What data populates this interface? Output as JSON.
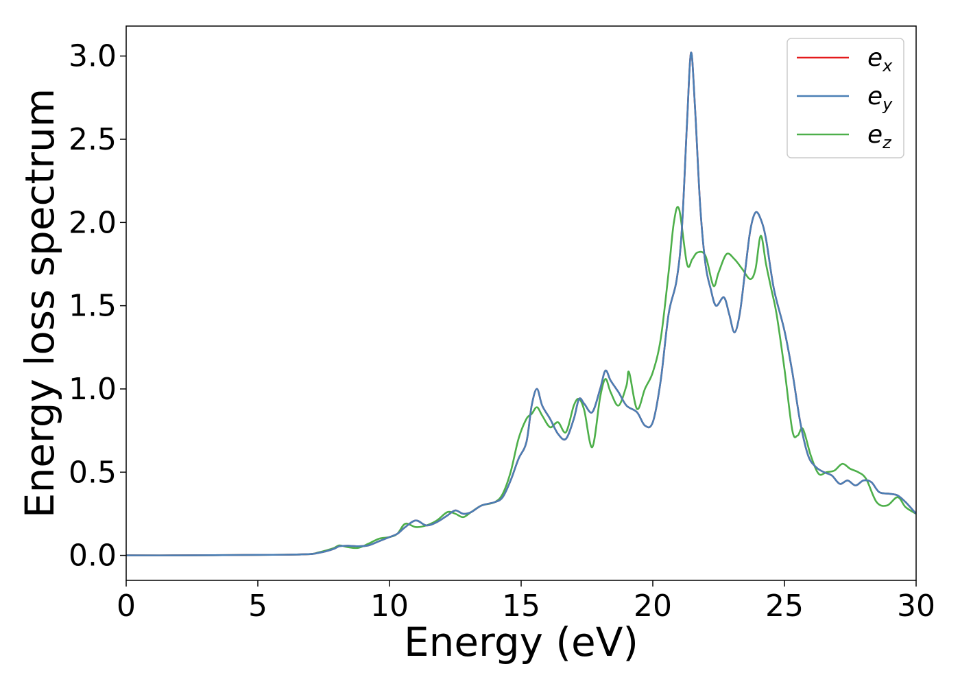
{
  "chart_data": {
    "type": "line",
    "xlabel": "Energy (eV)",
    "ylabel": "Energy loss spectrum",
    "xlim": [
      0,
      30
    ],
    "ylim": [
      -0.15,
      3.18
    ],
    "xticks": [
      0,
      5,
      10,
      15,
      20,
      25,
      30
    ],
    "xtick_labels": [
      "0",
      "5",
      "10",
      "15",
      "20",
      "25",
      "30"
    ],
    "yticks": [
      0.0,
      0.5,
      1.0,
      1.5,
      2.0,
      2.5,
      3.0
    ],
    "ytick_labels": [
      "0.0",
      "0.5",
      "1.0",
      "1.5",
      "2.0",
      "2.5",
      "3.0"
    ],
    "grid": false,
    "legend_position": "top-right",
    "series": [
      {
        "name": "e",
        "sub": "x",
        "color": "#e41a1c",
        "x": [
          0,
          2,
          4,
          6,
          7,
          7.3,
          7.6,
          7.9,
          8.1,
          8.4,
          8.8,
          9.2,
          9.6,
          10,
          10.3,
          10.6,
          11,
          11.4,
          11.8,
          12.2,
          12.5,
          12.8,
          13.1,
          13.5,
          14,
          14.3,
          14.6,
          14.9,
          15.2,
          15.4,
          15.6,
          15.8,
          16.1,
          16.4,
          16.7,
          17,
          17.2,
          17.4,
          17.7,
          18,
          18.2,
          18.4,
          18.7,
          19,
          19.4,
          19.7,
          20,
          20.3,
          20.6,
          20.9,
          21.1,
          21.3,
          21.45,
          21.6,
          21.8,
          22,
          22.2,
          22.4,
          22.7,
          22.9,
          23.1,
          23.3,
          23.5,
          23.7,
          23.9,
          24.1,
          24.3,
          24.6,
          25,
          25.3,
          25.6,
          25.9,
          26.2,
          26.5,
          26.8,
          27.1,
          27.4,
          27.7,
          28,
          28.3,
          28.6,
          29,
          29.3,
          29.6,
          30
        ],
        "y": [
          0,
          0,
          0.002,
          0.004,
          0.008,
          0.015,
          0.025,
          0.04,
          0.055,
          0.058,
          0.055,
          0.06,
          0.085,
          0.11,
          0.13,
          0.17,
          0.21,
          0.18,
          0.2,
          0.24,
          0.27,
          0.25,
          0.26,
          0.3,
          0.32,
          0.35,
          0.45,
          0.58,
          0.68,
          0.9,
          1.0,
          0.9,
          0.82,
          0.73,
          0.7,
          0.82,
          0.94,
          0.91,
          0.86,
          1.0,
          1.11,
          1.05,
          0.98,
          0.9,
          0.86,
          0.78,
          0.8,
          1.05,
          1.45,
          1.65,
          1.95,
          2.6,
          3.02,
          2.7,
          2.1,
          1.75,
          1.6,
          1.5,
          1.55,
          1.45,
          1.34,
          1.45,
          1.7,
          1.95,
          2.06,
          2.02,
          1.9,
          1.6,
          1.35,
          1.1,
          0.8,
          0.6,
          0.53,
          0.5,
          0.48,
          0.43,
          0.45,
          0.42,
          0.45,
          0.44,
          0.38,
          0.37,
          0.36,
          0.32,
          0.25
        ]
      },
      {
        "name": "e",
        "sub": "y",
        "color": "#4a7fb5",
        "x": [
          0,
          2,
          4,
          6,
          7,
          7.3,
          7.6,
          7.9,
          8.1,
          8.4,
          8.8,
          9.2,
          9.6,
          10,
          10.3,
          10.6,
          11,
          11.4,
          11.8,
          12.2,
          12.5,
          12.8,
          13.1,
          13.5,
          14,
          14.3,
          14.6,
          14.9,
          15.2,
          15.4,
          15.6,
          15.8,
          16.1,
          16.4,
          16.7,
          17,
          17.2,
          17.4,
          17.7,
          18,
          18.2,
          18.4,
          18.7,
          19,
          19.4,
          19.7,
          20,
          20.3,
          20.6,
          20.9,
          21.1,
          21.3,
          21.45,
          21.6,
          21.8,
          22,
          22.2,
          22.4,
          22.7,
          22.9,
          23.1,
          23.3,
          23.5,
          23.7,
          23.9,
          24.1,
          24.3,
          24.6,
          25,
          25.3,
          25.6,
          25.9,
          26.2,
          26.5,
          26.8,
          27.1,
          27.4,
          27.7,
          28,
          28.3,
          28.6,
          29,
          29.3,
          29.6,
          30
        ],
        "y": [
          0,
          0,
          0.002,
          0.004,
          0.008,
          0.015,
          0.025,
          0.04,
          0.055,
          0.058,
          0.055,
          0.06,
          0.085,
          0.11,
          0.13,
          0.17,
          0.21,
          0.18,
          0.2,
          0.24,
          0.27,
          0.25,
          0.26,
          0.3,
          0.32,
          0.35,
          0.45,
          0.58,
          0.68,
          0.9,
          1.0,
          0.9,
          0.82,
          0.73,
          0.7,
          0.82,
          0.94,
          0.91,
          0.86,
          1.0,
          1.11,
          1.05,
          0.98,
          0.9,
          0.86,
          0.78,
          0.8,
          1.05,
          1.45,
          1.65,
          1.95,
          2.6,
          3.02,
          2.7,
          2.1,
          1.75,
          1.6,
          1.5,
          1.55,
          1.45,
          1.34,
          1.45,
          1.7,
          1.95,
          2.06,
          2.02,
          1.9,
          1.6,
          1.35,
          1.1,
          0.8,
          0.6,
          0.53,
          0.5,
          0.48,
          0.43,
          0.45,
          0.42,
          0.45,
          0.44,
          0.38,
          0.37,
          0.36,
          0.32,
          0.25
        ]
      },
      {
        "name": "e",
        "sub": "z",
        "color": "#4daf4a",
        "x": [
          0,
          2,
          4,
          6,
          7,
          7.3,
          7.6,
          7.9,
          8.1,
          8.4,
          8.8,
          9.2,
          9.6,
          10,
          10.3,
          10.6,
          11,
          11.4,
          11.8,
          12.2,
          12.5,
          12.8,
          13.1,
          13.5,
          14,
          14.3,
          14.6,
          14.9,
          15.2,
          15.4,
          15.6,
          15.8,
          16.1,
          16.4,
          16.7,
          17,
          17.2,
          17.4,
          17.7,
          18,
          18.2,
          18.4,
          18.7,
          19,
          19.1,
          19.4,
          19.7,
          20,
          20.3,
          20.6,
          20.8,
          21,
          21.3,
          21.5,
          21.7,
          22,
          22.3,
          22.5,
          22.8,
          23.1,
          23.4,
          23.7,
          23.9,
          24.1,
          24.3,
          24.5,
          24.7,
          25,
          25.3,
          25.5,
          25.7,
          26,
          26.3,
          26.6,
          26.9,
          27.2,
          27.5,
          27.8,
          28.1,
          28.5,
          28.9,
          29.3,
          29.6,
          30
        ],
        "y": [
          0,
          0,
          0.002,
          0.004,
          0.008,
          0.018,
          0.03,
          0.045,
          0.06,
          0.05,
          0.045,
          0.07,
          0.1,
          0.11,
          0.13,
          0.19,
          0.17,
          0.18,
          0.21,
          0.26,
          0.25,
          0.23,
          0.26,
          0.3,
          0.32,
          0.37,
          0.5,
          0.7,
          0.82,
          0.85,
          0.89,
          0.84,
          0.77,
          0.8,
          0.74,
          0.9,
          0.94,
          0.87,
          0.65,
          0.95,
          1.06,
          0.98,
          0.9,
          1.02,
          1.1,
          0.88,
          1.0,
          1.1,
          1.3,
          1.7,
          2.0,
          2.08,
          1.75,
          1.78,
          1.82,
          1.8,
          1.62,
          1.7,
          1.81,
          1.78,
          1.72,
          1.66,
          1.72,
          1.92,
          1.75,
          1.6,
          1.45,
          1.12,
          0.75,
          0.72,
          0.76,
          0.6,
          0.49,
          0.5,
          0.51,
          0.55,
          0.52,
          0.5,
          0.46,
          0.32,
          0.3,
          0.35,
          0.29,
          0.25
        ]
      }
    ]
  }
}
